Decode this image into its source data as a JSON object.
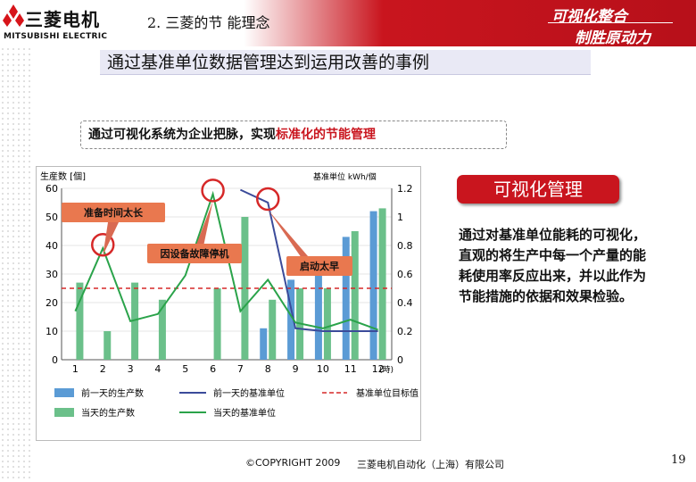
{
  "header": {
    "logo_jp": "三菱电机",
    "logo_en": "MITSUBISHI ELECTRIC",
    "section_title": "2. 三菱的节 能理念",
    "slogan_line1": "可视化整合",
    "slogan_line2": "制胜原动力"
  },
  "main_title": "通过基准单位数据管理达到运用改善的事例",
  "subtitle": {
    "part1": "通过可视化系统为企业把脉，",
    "part2": "实现",
    "part3": "标准化的节能管理"
  },
  "visual_button": "可视化管理",
  "description": "通过对基准单位能耗的可视化，直观的将生产中每一个产量的能耗使用率反应出来，并以此作为节能措施的依据和效果检验。",
  "footer": {
    "copyright": "©COPYRIGHT 2009",
    "company": "三菱电机自动化（上海）有限公司",
    "page": "19"
  },
  "chart_data": {
    "type": "bar",
    "categories": [
      "1",
      "2",
      "3",
      "4",
      "5",
      "6",
      "7",
      "8",
      "9",
      "10",
      "11",
      "12"
    ],
    "x_unit": "(時)",
    "ylabel_left": "生産数 [個]",
    "ylabel_right": "基准単位 kWh/個",
    "ylim_left": [
      0,
      60
    ],
    "ylim_right": [
      0,
      1.2
    ],
    "yticks_left": [
      "0",
      "10",
      "20",
      "30",
      "40",
      "50",
      "60"
    ],
    "yticks_right": [
      "0",
      "0.2",
      "0.4",
      "0.6",
      "0.8",
      "1",
      "1.2"
    ],
    "series": [
      {
        "name": "前一天的生产数",
        "kind": "bar",
        "axis": "left",
        "color": "#5b9bd5",
        "values": [
          0,
          0,
          0,
          0,
          0,
          0,
          0,
          11,
          28,
          36,
          43,
          52
        ]
      },
      {
        "name": "当天的生产数",
        "kind": "bar",
        "axis": "left",
        "color": "#6bc08a",
        "values": [
          27,
          10,
          27,
          21,
          0,
          25,
          50,
          21,
          25,
          25,
          45,
          53
        ]
      },
      {
        "name": "前一天的基准单位",
        "kind": "line",
        "axis": "right",
        "color": "#3b4b9a",
        "values": [
          null,
          null,
          null,
          null,
          null,
          null,
          1.19,
          1.1,
          0.22,
          0.2,
          0.2,
          0.2
        ]
      },
      {
        "name": "当天的基准单位",
        "kind": "line",
        "axis": "right",
        "color": "#2aa34a",
        "values": [
          0.34,
          0.78,
          0.27,
          0.32,
          0.59,
          1.16,
          0.34,
          0.56,
          0.26,
          0.22,
          0.28,
          0.21
        ]
      }
    ],
    "target": {
      "name": "基准单位目标值",
      "value": 0.5,
      "axis": "right",
      "color": "#d62828"
    },
    "annotations": [
      {
        "text": "准备时间太长"
      },
      {
        "text": "因设备故障停机"
      },
      {
        "text": "启动太早"
      }
    ],
    "legend_position": "bottom"
  }
}
